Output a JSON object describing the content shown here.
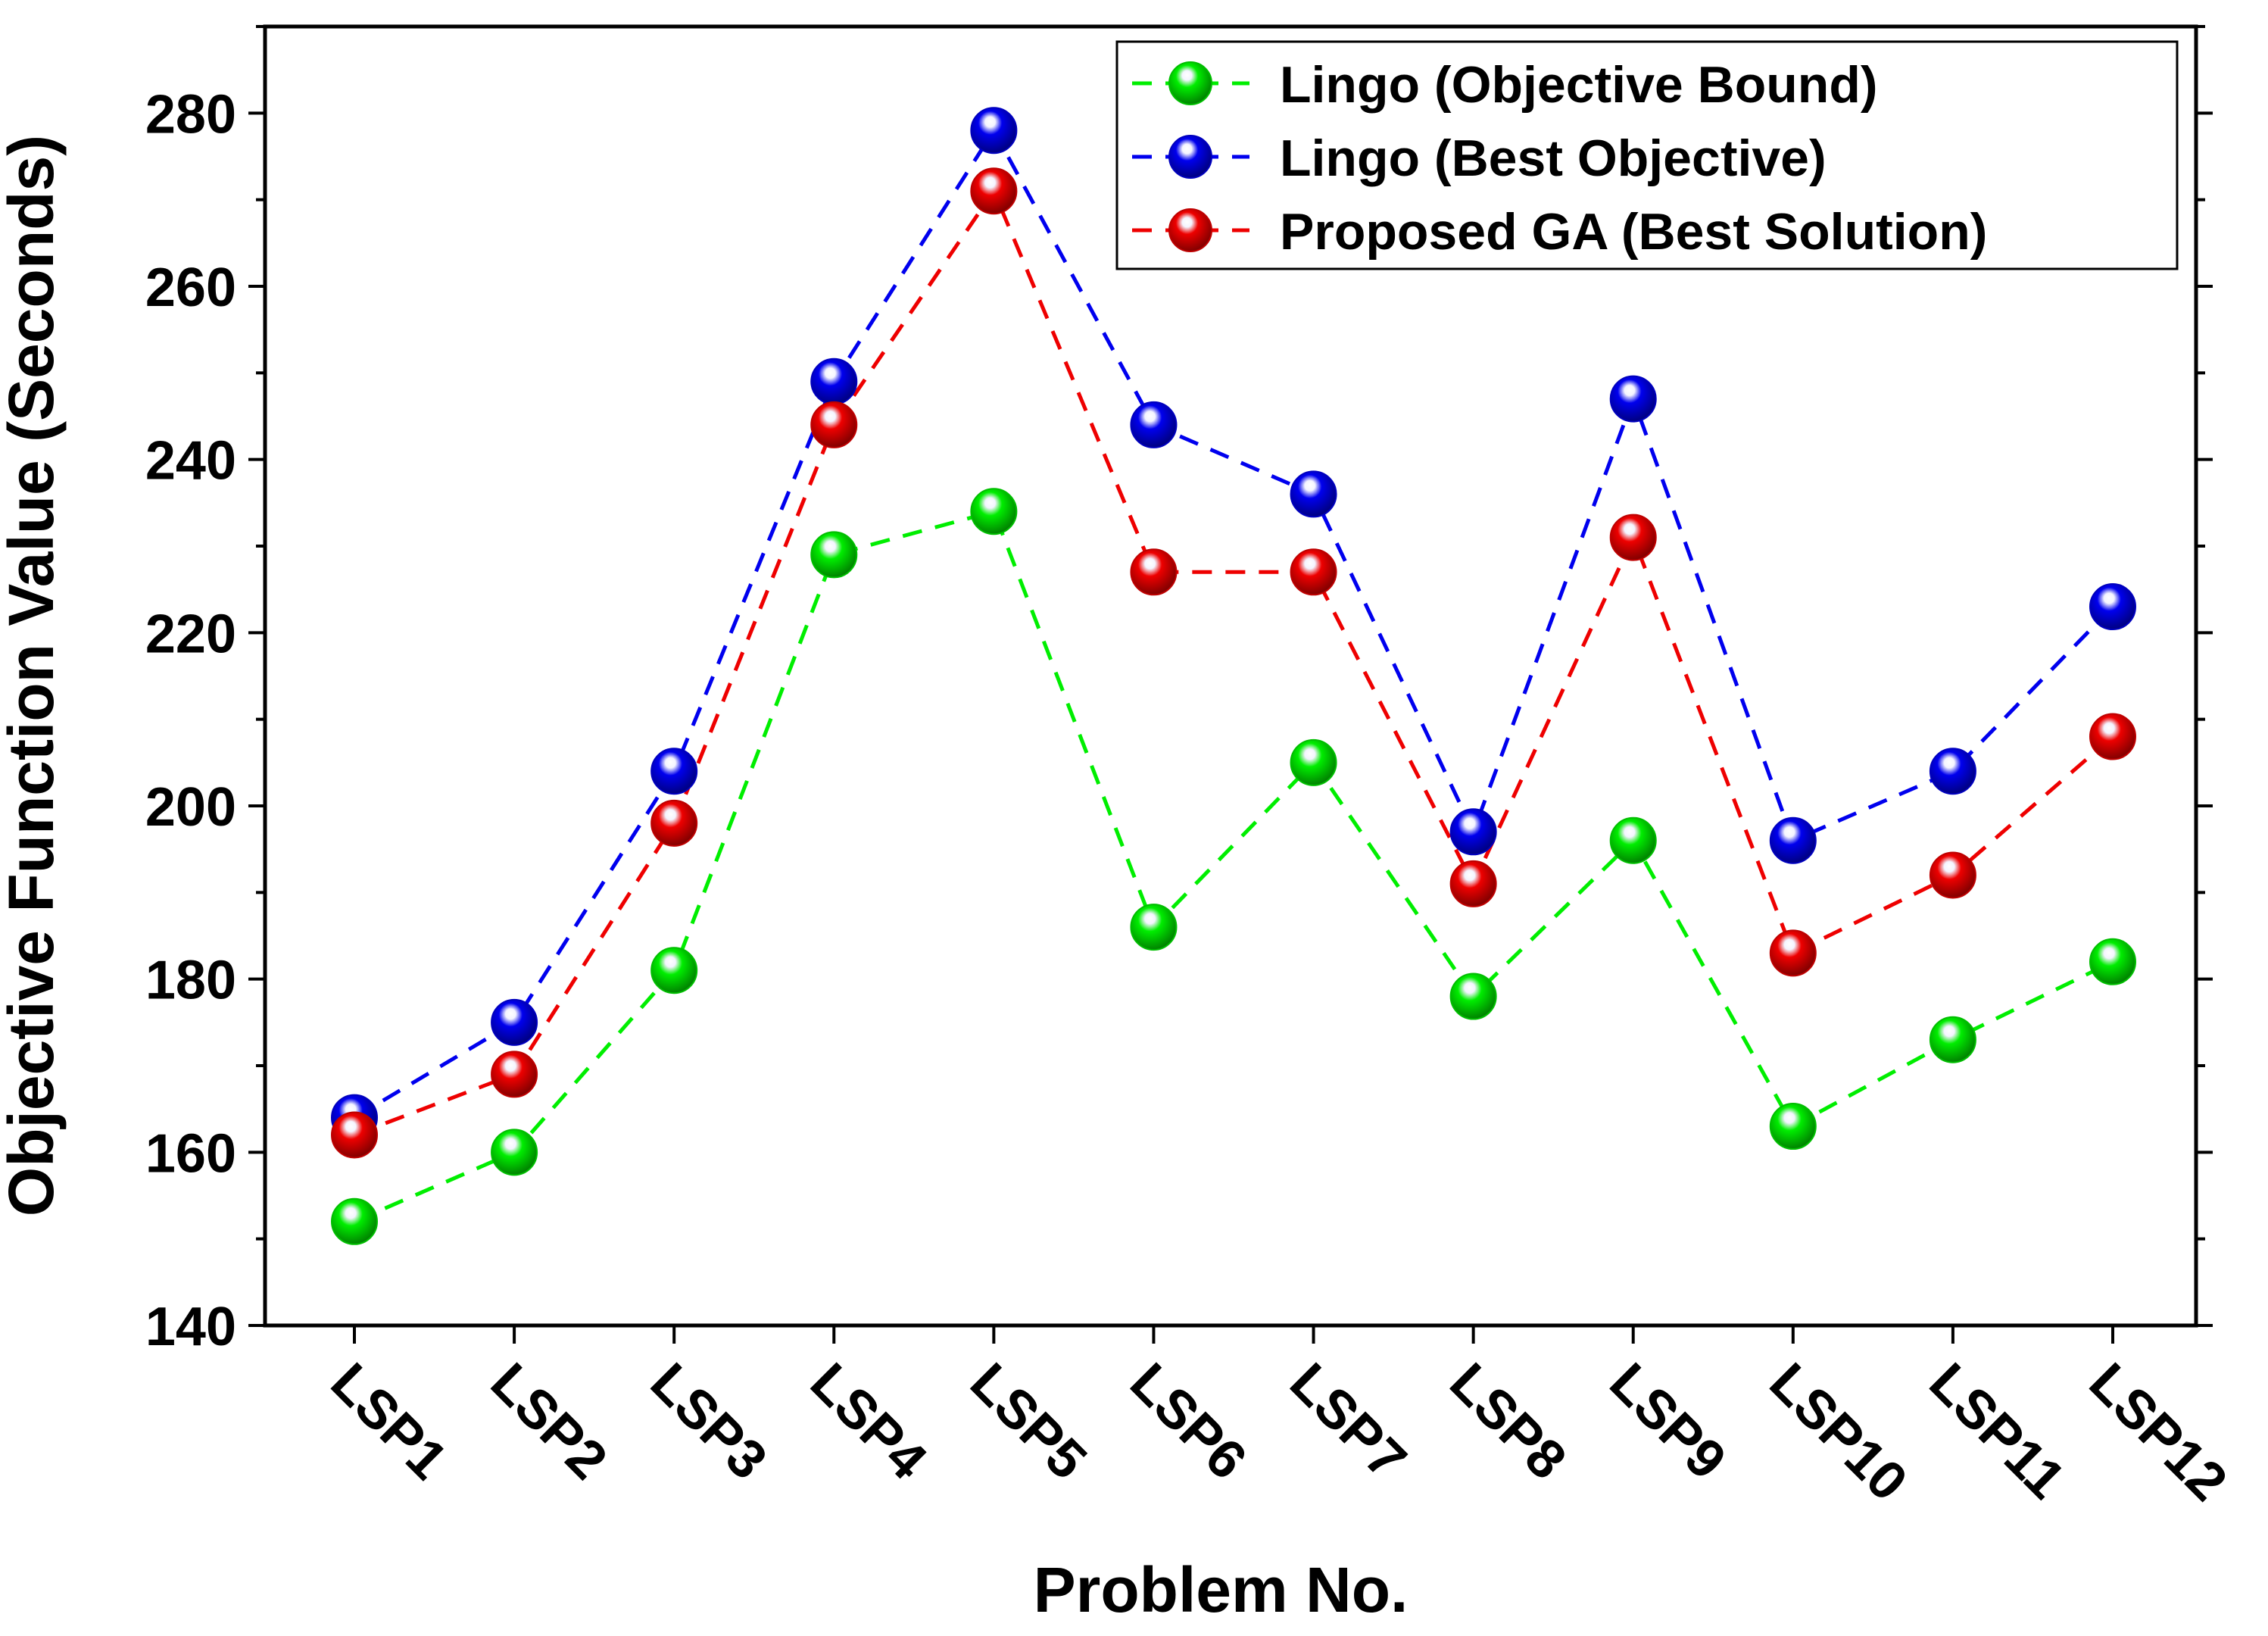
{
  "chart_data": {
    "type": "line",
    "title": "",
    "xlabel": "Problem No.",
    "ylabel": "Objective Function Value (Seconds)",
    "categories": [
      "LSP1",
      "LSP2",
      "LSP3",
      "LSP4",
      "LSP5",
      "LSP6",
      "LSP7",
      "LSP8",
      "LSP9",
      "LSP10",
      "LSP11",
      "LSP12"
    ],
    "ylim": [
      140,
      290
    ],
    "yticks": [
      140,
      160,
      180,
      200,
      220,
      240,
      260,
      280
    ],
    "grid": false,
    "legend_position": "top-right",
    "line_style": "dashed",
    "marker": "sphere",
    "series": [
      {
        "name": "Lingo (Objective Bound)",
        "color": "#00ee00",
        "values": [
          152,
          160,
          181,
          229,
          234,
          186,
          205,
          178,
          196,
          163,
          173,
          182
        ]
      },
      {
        "name": "Lingo (Best Objective)",
        "color": "#0000ee",
        "values": [
          164,
          175,
          204,
          249,
          278,
          244,
          236,
          197,
          247,
          196,
          204,
          223
        ]
      },
      {
        "name": "Proposed GA (Best Solution)",
        "color": "#ee0000",
        "values": [
          162,
          169,
          198,
          244,
          271,
          227,
          227,
          191,
          231,
          183,
          192,
          208
        ]
      }
    ]
  }
}
